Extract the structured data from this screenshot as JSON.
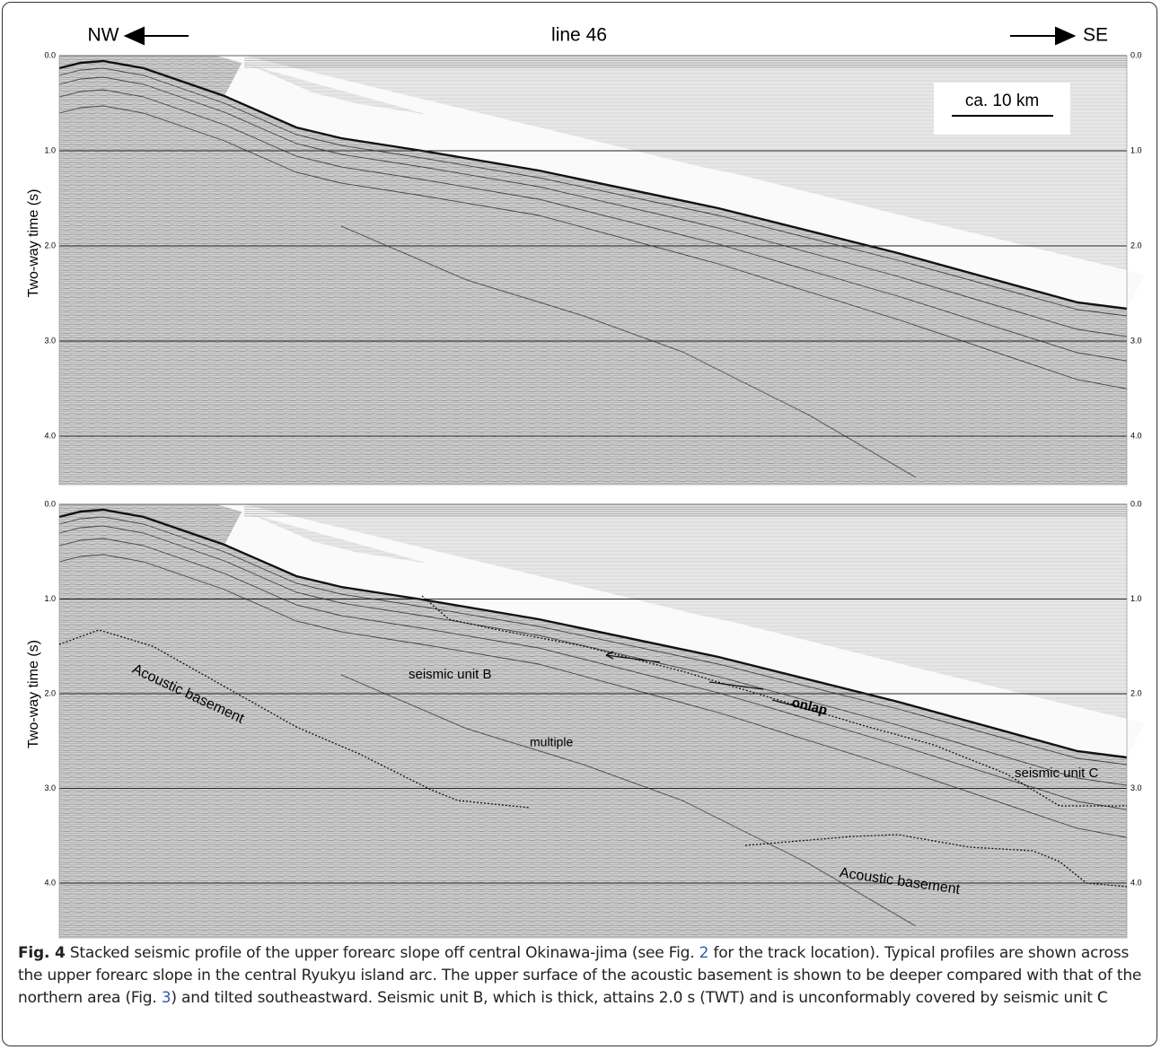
{
  "figure": {
    "header": {
      "left": "NW",
      "center": "line 46",
      "right": "SE"
    },
    "scale_bar": "ca. 10 km",
    "panels": [
      {
        "y_label": "Two-way time (s)",
        "ticks": [
          "0.0",
          "1.0",
          "2.0",
          "3.0",
          "4.0"
        ],
        "annotations": []
      },
      {
        "y_label": "Two-way time (s)",
        "ticks": [
          "0.0",
          "1.0",
          "2.0",
          "3.0",
          "4.0"
        ],
        "annotations": [
          "seismic unit B",
          "multiple",
          "onlap",
          "seismic unit C",
          "Acoustic basement",
          "Acoustic basement"
        ]
      }
    ],
    "caption": {
      "label": "Fig. 4",
      "parts": [
        " Stacked seismic profile of the upper forearc slope off central Okinawa-jima (see Fig. ",
        "2",
        " for the track location). Typical profiles are shown across the upper forearc slope in the central Ryukyu island arc. The upper surface of the acoustic basement is shown to be deeper compared with that of the northern area (Fig. ",
        "3",
        ") and tilted southeastward. Seismic unit B, which is thick, attains 2.0 s (TWT) and is unconformably covered by seismic unit C"
      ]
    }
  }
}
